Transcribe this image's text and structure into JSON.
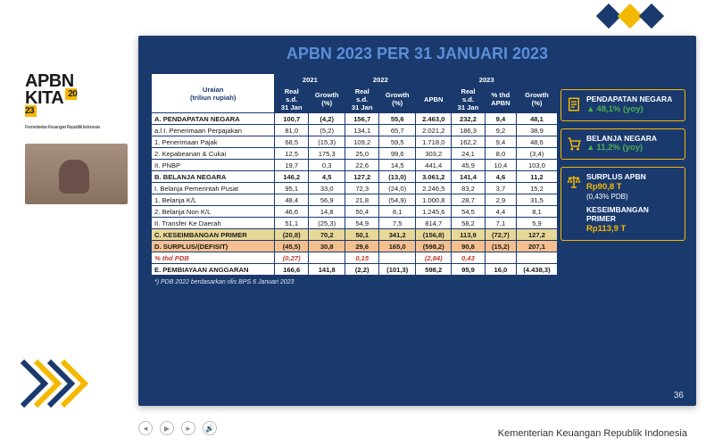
{
  "logo": {
    "line1": "APBN",
    "line2": "KITA",
    "year": "20\n23",
    "sub": "Kementerian Keuangan Republik Indonesia"
  },
  "slide": {
    "title": "APBN 2023 PER 31 JANUARI 2023",
    "footnote": "*) PDB 2022 berdasarkan rilis BPS 6 Januari 2023",
    "pagenum": "36"
  },
  "table": {
    "col_uraian": "Uraian\n(triliun rupiah)",
    "years": [
      "2021",
      "2022",
      "2023"
    ],
    "sub21": [
      "Real s.d. 31 Jan",
      "Growth (%)"
    ],
    "sub22": [
      "Real s.d. 31 Jan",
      "Growth (%)"
    ],
    "sub23": [
      "APBN",
      "Real s.d. 31 Jan",
      "% thd APBN",
      "Growth (%)"
    ],
    "rows": [
      {
        "cls": "section",
        "l": "A.  PENDAPATAN NEGARA",
        "v": [
          "100,7",
          "(4,2)",
          "156,7",
          "55,6",
          "2.463,0",
          "232,2",
          "9,4",
          "48,1"
        ]
      },
      {
        "cls": "",
        "l": "a.l  I.  Penerimaan Perpajakan",
        "v": [
          "81,0",
          "(5,2)",
          "134,1",
          "65,7",
          "2.021,2",
          "186,3",
          "9,2",
          "38,9"
        ]
      },
      {
        "cls": "",
        "l": "       1. Penerimaan Pajak",
        "v": [
          "68,5",
          "(15,3)",
          "109,2",
          "59,5",
          "1.718,0",
          "162,2",
          "9,4",
          "48,6"
        ]
      },
      {
        "cls": "",
        "l": "       2. Kepabeanan & Cukai",
        "v": [
          "12,5",
          "175,3",
          "25,0",
          "99,6",
          "303,2",
          "24,1",
          "8,0",
          "(3,4)"
        ]
      },
      {
        "cls": "",
        "l": "     II. PNBP",
        "v": [
          "19,7",
          "0,3",
          "22,6",
          "14,5",
          "441,4",
          "45,9",
          "10,4",
          "103,0"
        ]
      },
      {
        "cls": "section",
        "l": "B.  BELANJA NEGARA",
        "v": [
          "146,2",
          "4,5",
          "127,2",
          "(13,0)",
          "3.061,2",
          "141,4",
          "4,6",
          "11,2"
        ]
      },
      {
        "cls": "",
        "l": "     I.  Belanja Pemerintah Pusat",
        "v": [
          "95,1",
          "33,0",
          "72,3",
          "(24,0)",
          "2.246,5",
          "83,2",
          "3,7",
          "15,2"
        ]
      },
      {
        "cls": "",
        "l": "       1. Belanja K/L",
        "v": [
          "48,4",
          "56,9",
          "21,8",
          "(54,9)",
          "1.000,8",
          "28,7",
          "2,9",
          "31,5"
        ]
      },
      {
        "cls": "",
        "l": "       2. Belanja Non K/L",
        "v": [
          "46,6",
          "14,8",
          "50,4",
          "8,1",
          "1.245,6",
          "54,5",
          "4,4",
          "8,1"
        ]
      },
      {
        "cls": "",
        "l": "     II. Transfer Ke Daerah",
        "v": [
          "51,1",
          "(25,3)",
          "54,9",
          "7,5",
          "814,7",
          "58,2",
          "7,1",
          "5,9"
        ]
      },
      {
        "cls": "kesimb",
        "l": "C.  KESEIMBANGAN PRIMER",
        "v": [
          "(20,8)",
          "70,2",
          "50,1",
          "341,2",
          "(156,8)",
          "113,9",
          "(72,7)",
          "127,2"
        ]
      },
      {
        "cls": "surplus",
        "l": "D.  SURPLUS/(DEFISIT)",
        "v": [
          "(45,5)",
          "30,8",
          "29,6",
          "165,0",
          "(598,2)",
          "90,8",
          "(15,2)",
          "207,1"
        ]
      },
      {
        "cls": "pdb",
        "l": "       % thd PDB",
        "v": [
          "(0,27)",
          "",
          "0,15",
          "",
          "(2,84)",
          "0,43",
          "",
          ""
        ]
      },
      {
        "cls": "pembiayaan",
        "l": "E.  PEMBIAYAAN ANGGARAN",
        "v": [
          "166,6",
          "141,8",
          "(2,2)",
          "(101,3)",
          "598,2",
          "95,9",
          "16,0",
          "(4.438,3)"
        ]
      }
    ]
  },
  "cards": [
    {
      "icon": "doc",
      "title": "PENDAPATAN NEGARA",
      "value": "48,1% (yoy)",
      "valcls": "green",
      "arrow": true
    },
    {
      "icon": "cart",
      "title": "BELANJA NEGARA",
      "value": "11,2% (yoy)",
      "valcls": "green",
      "arrow": true
    },
    {
      "icon": "scale",
      "title": "SURPLUS APBN",
      "value": "Rp90,8 T",
      "sub": "(0,43% PDB)",
      "title2": "KESEIMBANGAN PRIMER",
      "value2": "Rp113,9 T"
    }
  ],
  "footer": "Kementerian Keuangan Republik Indonesia"
}
